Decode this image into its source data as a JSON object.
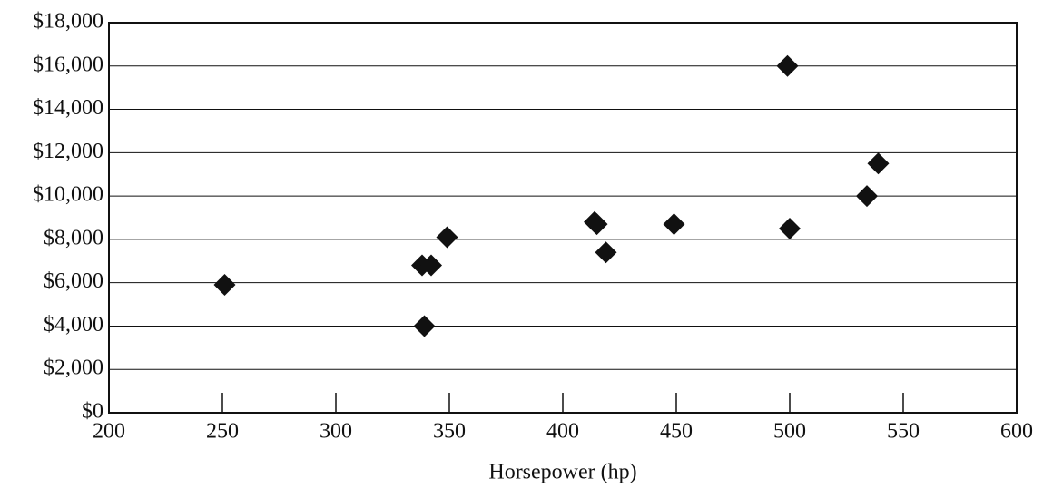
{
  "chart_data": {
    "type": "scatter",
    "x_label": "Horsepower (hp)",
    "x": [
      251,
      338,
      342,
      349,
      339,
      414,
      415,
      419,
      449,
      499,
      500,
      534,
      539
    ],
    "values": [
      5900,
      6800,
      6800,
      8100,
      4000,
      8800,
      8700,
      7400,
      8700,
      16000,
      8500,
      10000,
      11500
    ],
    "color": "#111111",
    "marker": "diamond",
    "xlim": [
      200,
      600
    ],
    "xticks": [
      200,
      250,
      300,
      350,
      400,
      450,
      500,
      550,
      600
    ],
    "ylim": [
      0,
      18000
    ],
    "yticks": [
      {
        "value": 0,
        "label": "$0"
      },
      {
        "value": 2000,
        "label": "$2,000"
      },
      {
        "value": 4000,
        "label": "$4,000"
      },
      {
        "value": 6000,
        "label": "$6,000"
      },
      {
        "value": 8000,
        "label": "$8,000"
      },
      {
        "value": 10000,
        "label": "$10,000"
      },
      {
        "value": 12000,
        "label": "$12,000"
      },
      {
        "value": 14000,
        "label": "$14,000"
      },
      {
        "value": 16000,
        "label": "$16,000"
      },
      {
        "value": 18000,
        "label": "$18,000"
      }
    ],
    "grid": true
  }
}
